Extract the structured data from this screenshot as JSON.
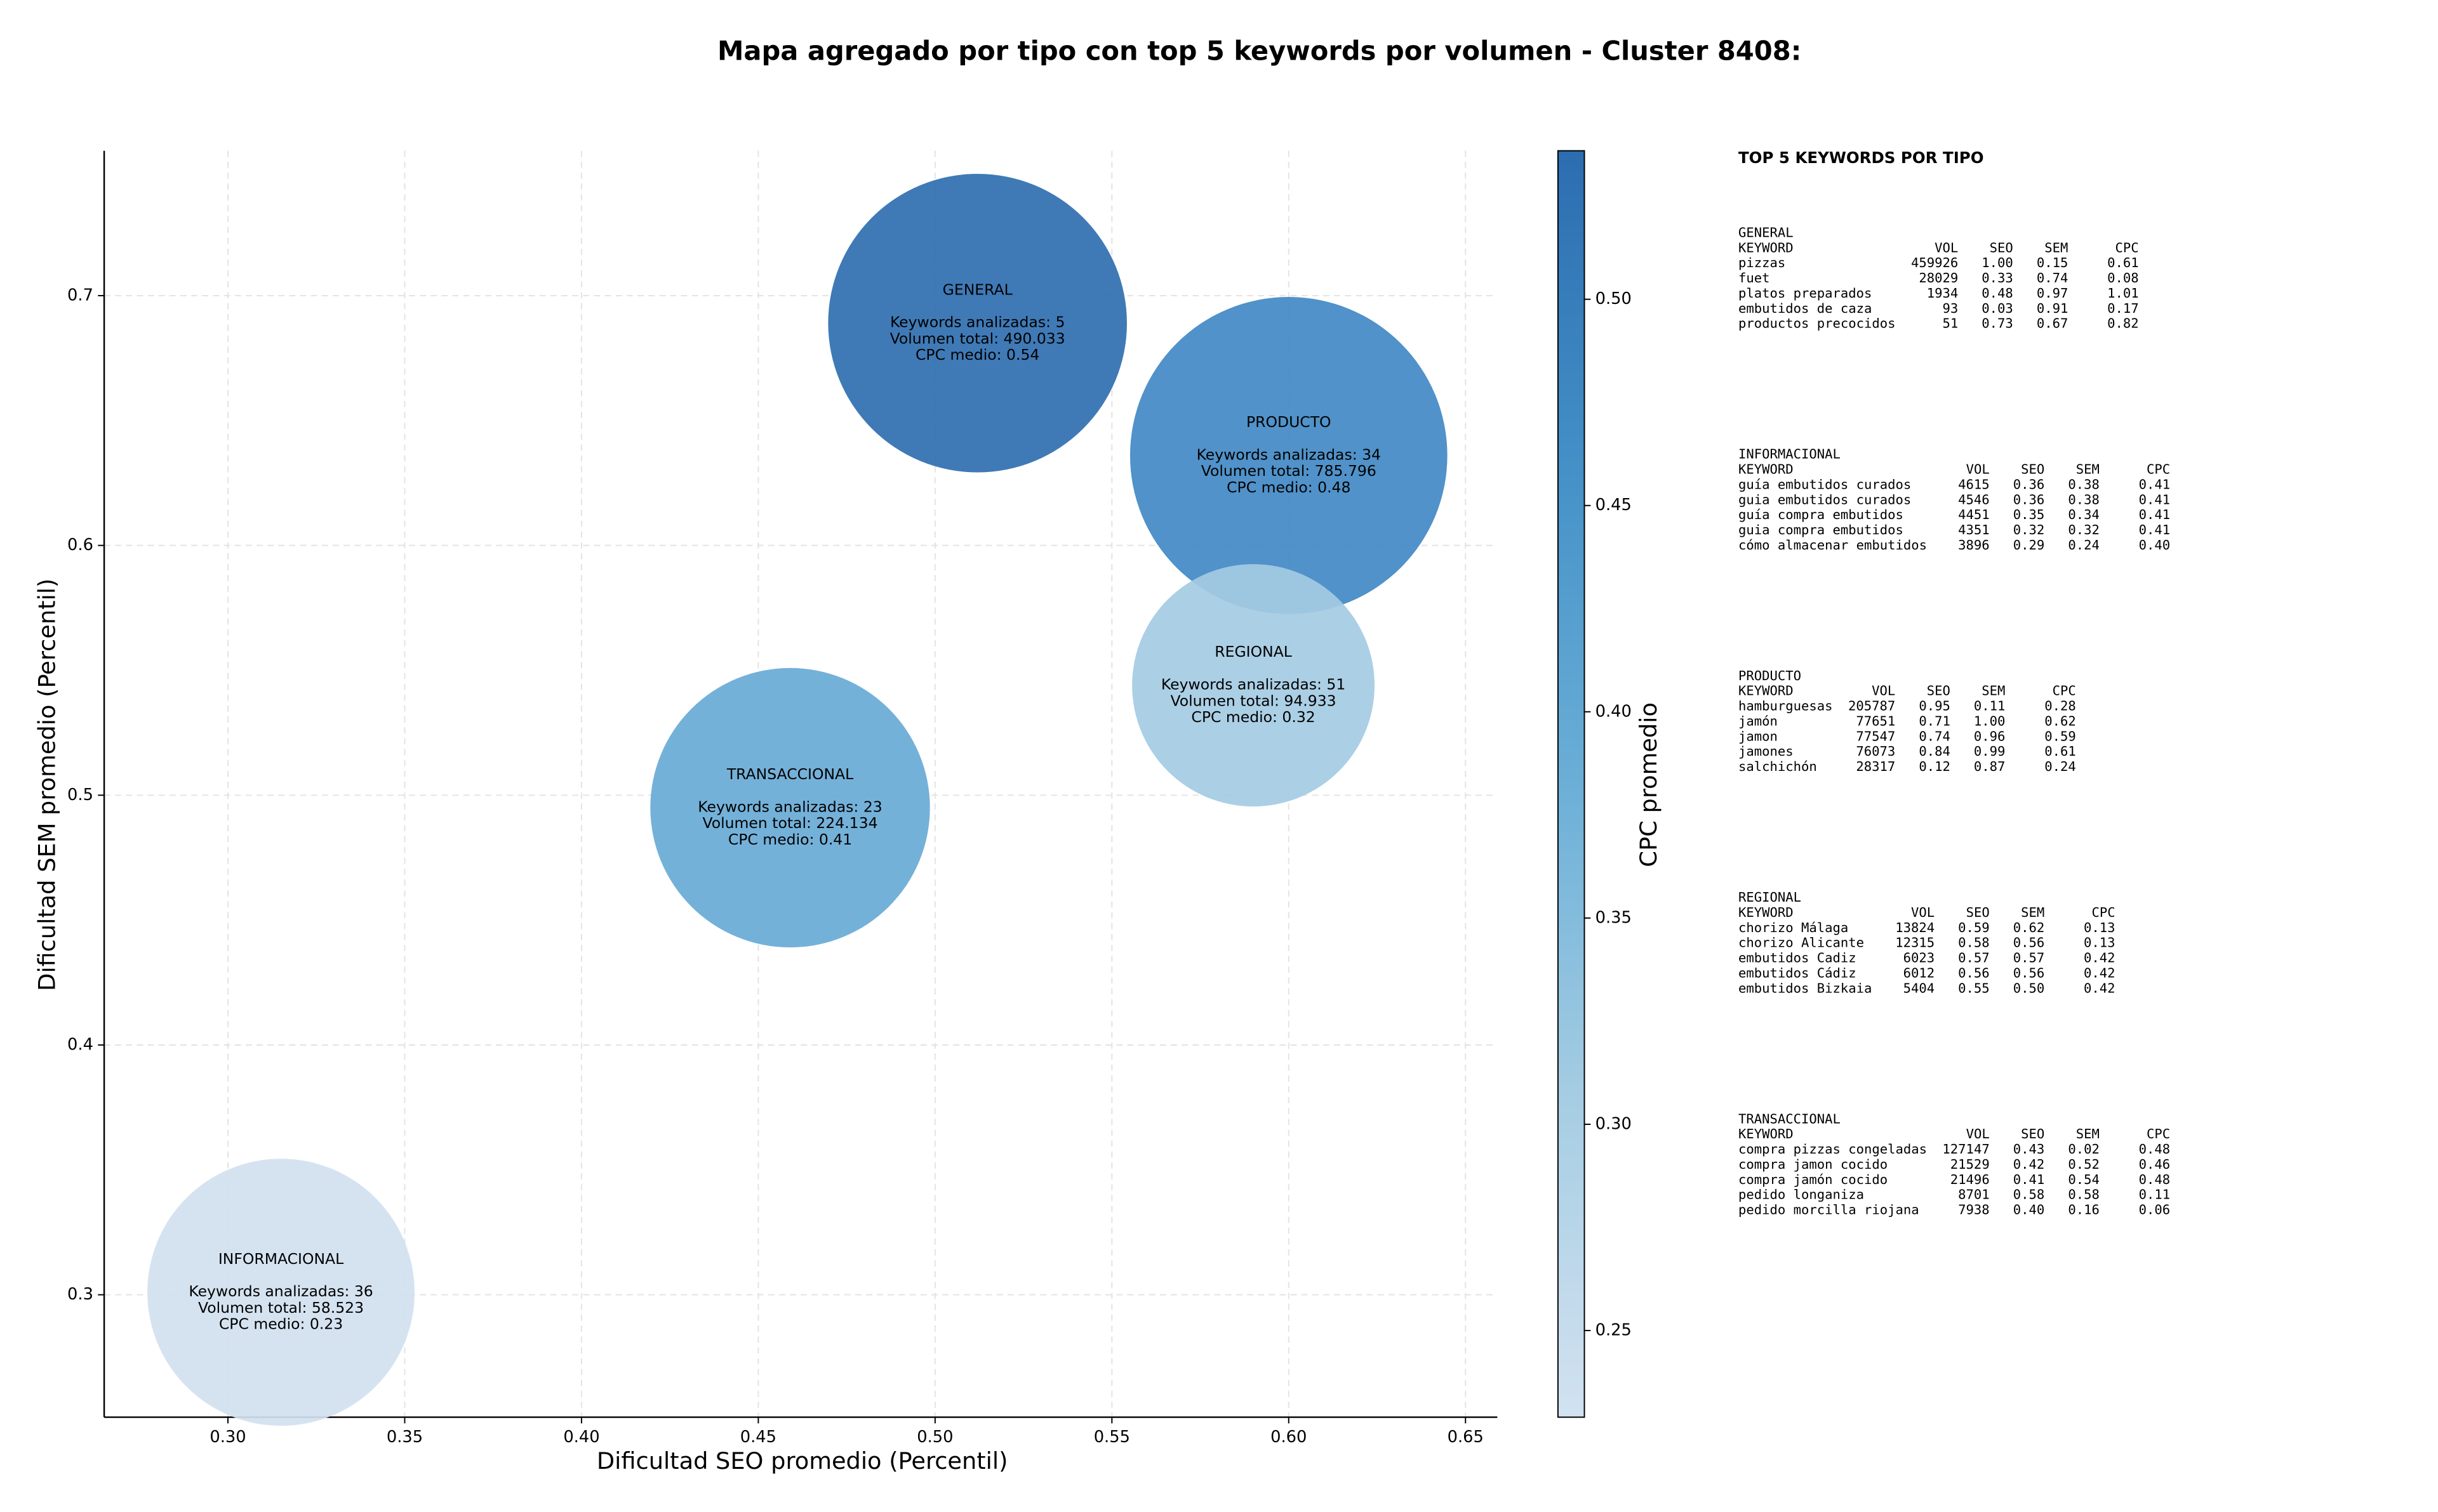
{
  "chart_data": {
    "type": "scatter",
    "title": "Mapa agregado por tipo con top 5 keywords por volumen - Cluster 8408:",
    "xlabel": "Dificultad SEO promedio (Percentil)",
    "ylabel": "Dificultad SEM promedio (Percentil)",
    "xlim": [
      0.265,
      0.659
    ],
    "ylim": [
      0.251,
      0.758
    ],
    "xticks": [
      {
        "value": 0.3,
        "label": "0.30"
      },
      0.35,
      {
        "value": 0.4,
        "label": "0.40"
      },
      0.45,
      {
        "value": 0.5,
        "label": "0.50"
      },
      0.55,
      {
        "value": 0.6,
        "label": "0.60"
      },
      0.65
    ],
    "yticks": [
      0.3,
      0.4,
      0.5,
      0.6,
      0.7
    ],
    "grid": true,
    "categories": [
      "GENERAL",
      "PRODUCTO",
      "REGIONAL",
      "TRANSACCIONAL",
      "INFORMACIONAL"
    ],
    "x": [
      0.512,
      0.6,
      0.59,
      0.459,
      0.315
    ],
    "values": [
      0.689,
      0.636,
      0.544,
      0.495,
      0.301
    ],
    "sizes": [
      29000,
      32700,
      19100,
      25400,
      23200
    ],
    "colors": [
      "#2f6fb0",
      "#4189c4",
      "#a4cbe3",
      "#68aad6",
      "#d1e1f0"
    ],
    "annotations": [
      [
        "Keywords analizadas: 5",
        "Volumen total: 490.033",
        "CPC medio: 0.54"
      ],
      [
        "Keywords analizadas: 34",
        "Volumen total: 785.796",
        "CPC medio: 0.48"
      ],
      [
        "Keywords analizadas: 51",
        "Volumen total: 94.933",
        "CPC medio: 0.32"
      ],
      [
        "Keywords analizadas: 23",
        "Volumen total: 224.134",
        "CPC medio: 0.41"
      ],
      [
        "Keywords analizadas: 36",
        "Volumen total: 58.523",
        "CPC medio: 0.23"
      ]
    ],
    "colorbar": {
      "label": "CPC promedio",
      "lim": [
        0.229,
        0.536
      ],
      "ticks": [
        0.25,
        {
          "value": 0.3,
          "label": "0.30"
        },
        0.35,
        {
          "value": 0.4,
          "label": "0.40"
        },
        0.45,
        {
          "value": 0.5,
          "label": "0.50"
        }
      ],
      "colors": [
        "#d2e2f1",
        "#a6cde3",
        "#6bafd7",
        "#4490c7",
        "#2c6db0"
      ]
    }
  },
  "keywords_table": {
    "title": "TOP 5 KEYWORDS POR TIPO",
    "columns": [
      "KEYWORD",
      "VOL",
      "SEO",
      "SEM",
      "CPC"
    ],
    "sections": [
      {
        "name": "GENERAL",
        "rows": [
          [
            "pizzas",
            "459926",
            "1.00",
            "0.15",
            "0.61"
          ],
          [
            "fuet",
            "28029",
            "0.33",
            "0.74",
            "0.08"
          ],
          [
            "platos preparados",
            "1934",
            "0.48",
            "0.97",
            "1.01"
          ],
          [
            "embutidos de caza",
            "93",
            "0.03",
            "0.91",
            "0.17"
          ],
          [
            "productos precocidos",
            "51",
            "0.73",
            "0.67",
            "0.82"
          ]
        ]
      },
      {
        "name": "INFORMACIONAL",
        "rows": [
          [
            "guía embutidos curados",
            "4615",
            "0.36",
            "0.38",
            "0.41"
          ],
          [
            "guia embutidos curados",
            "4546",
            "0.36",
            "0.38",
            "0.41"
          ],
          [
            "guía compra embutidos",
            "4451",
            "0.35",
            "0.34",
            "0.41"
          ],
          [
            "guia compra embutidos",
            "4351",
            "0.32",
            "0.32",
            "0.41"
          ],
          [
            "cómo almacenar embutidos",
            "3896",
            "0.29",
            "0.24",
            "0.40"
          ]
        ]
      },
      {
        "name": "PRODUCTO",
        "rows": [
          [
            "hamburguesas",
            "205787",
            "0.95",
            "0.11",
            "0.28"
          ],
          [
            "jamón",
            "77651",
            "0.71",
            "1.00",
            "0.62"
          ],
          [
            "jamon",
            "77547",
            "0.74",
            "0.96",
            "0.59"
          ],
          [
            "jamones",
            "76073",
            "0.84",
            "0.99",
            "0.61"
          ],
          [
            "salchichón",
            "28317",
            "0.12",
            "0.87",
            "0.24"
          ]
        ]
      },
      {
        "name": "REGIONAL",
        "rows": [
          [
            "chorizo Málaga",
            "13824",
            "0.59",
            "0.62",
            "0.13"
          ],
          [
            "chorizo Alicante",
            "12315",
            "0.58",
            "0.56",
            "0.13"
          ],
          [
            "embutidos Cadiz",
            "6023",
            "0.57",
            "0.57",
            "0.42"
          ],
          [
            "embutidos Cádiz",
            "6012",
            "0.56",
            "0.56",
            "0.42"
          ],
          [
            "embutidos Bizkaia",
            "5404",
            "0.55",
            "0.50",
            "0.42"
          ]
        ]
      },
      {
        "name": "TRANSACCIONAL",
        "rows": [
          [
            "compra pizzas congeladas",
            "127147",
            "0.43",
            "0.02",
            "0.48"
          ],
          [
            "compra jamon cocido",
            "21529",
            "0.42",
            "0.52",
            "0.46"
          ],
          [
            "compra jamón cocido",
            "21496",
            "0.41",
            "0.54",
            "0.48"
          ],
          [
            "pedido longaniza",
            "8701",
            "0.58",
            "0.58",
            "0.11"
          ],
          [
            "pedido morcilla riojana",
            "7938",
            "0.40",
            "0.16",
            "0.06"
          ]
        ]
      }
    ]
  }
}
